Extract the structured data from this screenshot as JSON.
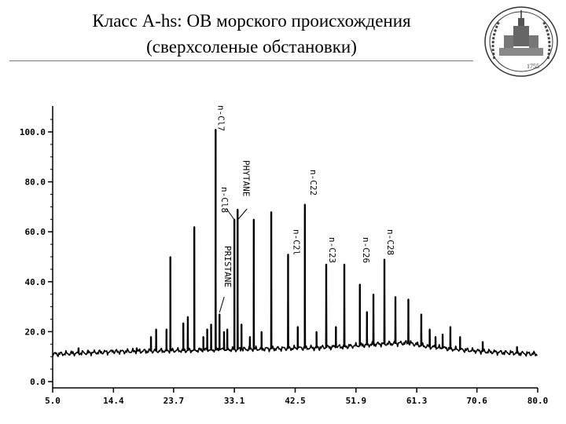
{
  "slide": {
    "title_line1": "Класс A-hs: ОВ морского происхождения",
    "title_line2": "(сверхсоленые обстановки)",
    "emblem_text": "1755"
  },
  "chart_data": {
    "type": "line",
    "title": "",
    "xlabel": "",
    "ylabel": "",
    "xlim": [
      5.0,
      80.0
    ],
    "ylim": [
      0,
      110
    ],
    "x_ticks": [
      "5.0",
      "14.4",
      "23.7",
      "33.1",
      "42.5",
      "51.9",
      "61.3",
      "70.6",
      "80.0"
    ],
    "y_ticks": [
      "0.0",
      "20.0",
      "40.0",
      "60.0",
      "80.0",
      "100.0"
    ],
    "baseline": [
      [
        5,
        11
      ],
      [
        15,
        12
      ],
      [
        25,
        12.5
      ],
      [
        35,
        13
      ],
      [
        45,
        13.5
      ],
      [
        50,
        14
      ],
      [
        55,
        15
      ],
      [
        60,
        15.5
      ],
      [
        63,
        14
      ],
      [
        67,
        13
      ],
      [
        72,
        12
      ],
      [
        76,
        11.5
      ],
      [
        80,
        11
      ]
    ],
    "peaks": [
      {
        "x": 9.0,
        "y": 13.5
      },
      {
        "x": 10.5,
        "y": 12.5
      },
      {
        "x": 14.3,
        "y": 12.5
      },
      {
        "x": 18.0,
        "y": 13.5
      },
      {
        "x": 20.2,
        "y": 18
      },
      {
        "x": 21.0,
        "y": 21
      },
      {
        "x": 22.6,
        "y": 21
      },
      {
        "x": 23.2,
        "y": 50
      },
      {
        "x": 25.2,
        "y": 23.5
      },
      {
        "x": 25.9,
        "y": 26
      },
      {
        "x": 26.9,
        "y": 62
      },
      {
        "x": 28.3,
        "y": 18
      },
      {
        "x": 28.9,
        "y": 21
      },
      {
        "x": 29.5,
        "y": 23
      },
      {
        "x": 30.2,
        "y": 101
      },
      {
        "x": 30.8,
        "y": 27
      },
      {
        "x": 31.5,
        "y": 20
      },
      {
        "x": 32.0,
        "y": 21
      },
      {
        "x": 33.1,
        "y": 65
      },
      {
        "x": 33.6,
        "y": 69
      },
      {
        "x": 34.2,
        "y": 23
      },
      {
        "x": 35.5,
        "y": 18
      },
      {
        "x": 36.1,
        "y": 65
      },
      {
        "x": 37.3,
        "y": 20
      },
      {
        "x": 38.8,
        "y": 68
      },
      {
        "x": 41.4,
        "y": 51
      },
      {
        "x": 42.9,
        "y": 22
      },
      {
        "x": 44.0,
        "y": 71
      },
      {
        "x": 45.8,
        "y": 20
      },
      {
        "x": 47.3,
        "y": 47
      },
      {
        "x": 48.8,
        "y": 22
      },
      {
        "x": 50.1,
        "y": 47
      },
      {
        "x": 52.5,
        "y": 39
      },
      {
        "x": 53.6,
        "y": 28
      },
      {
        "x": 54.6,
        "y": 35
      },
      {
        "x": 56.3,
        "y": 49
      },
      {
        "x": 58.0,
        "y": 34
      },
      {
        "x": 60.0,
        "y": 33
      },
      {
        "x": 62.0,
        "y": 27
      },
      {
        "x": 63.3,
        "y": 21
      },
      {
        "x": 64.2,
        "y": 18
      },
      {
        "x": 65.3,
        "y": 19
      },
      {
        "x": 66.5,
        "y": 22
      },
      {
        "x": 68.0,
        "y": 18
      },
      {
        "x": 71.5,
        "y": 16
      },
      {
        "x": 76.8,
        "y": 14
      }
    ],
    "annotations": [
      {
        "label": "n-Cl7",
        "x": 30.2
      },
      {
        "label": "n-Cl8",
        "x": 33.1
      },
      {
        "label": "PHYTANE",
        "x": 33.6
      },
      {
        "label": "PRISTANE",
        "x": 30.8
      },
      {
        "label": "n-C2l",
        "x": 41.4
      },
      {
        "label": "n-C22",
        "x": 44.0
      },
      {
        "label": "n-C23",
        "x": 47.3
      },
      {
        "label": "n-C26",
        "x": 52.5
      },
      {
        "label": "n-C28",
        "x": 56.3
      }
    ]
  }
}
